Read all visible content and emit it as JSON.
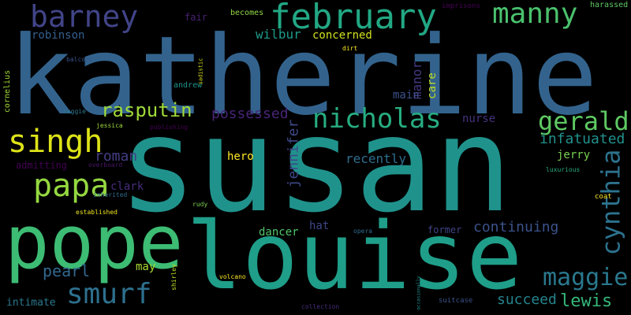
{
  "words": [
    {
      "text": "katherine",
      "color": "#33638d"
    },
    {
      "text": "susan",
      "color": "#20928c"
    },
    {
      "text": "louise",
      "color": "#1f9e89"
    },
    {
      "text": "pope",
      "color": "#3dbc74"
    },
    {
      "text": "february",
      "color": "#22a884"
    },
    {
      "text": "barney",
      "color": "#414487"
    },
    {
      "text": "manny",
      "color": "#4ac16d"
    },
    {
      "text": "singh",
      "color": "#dde318"
    },
    {
      "text": "papa",
      "color": "#95d840"
    },
    {
      "text": "smurf",
      "color": "#2d708e"
    },
    {
      "text": "nicholas",
      "color": "#27ad81"
    },
    {
      "text": "gerald",
      "color": "#5ec962"
    },
    {
      "text": "cynthia",
      "color": "#2c728e"
    },
    {
      "text": "maggie",
      "color": "#2a788e"
    },
    {
      "text": "rasputin",
      "color": "#a0da39"
    },
    {
      "text": "lewis",
      "color": "#35b779"
    },
    {
      "text": "possessed",
      "color": "#482576"
    },
    {
      "text": "continuing",
      "color": "#3b528b"
    },
    {
      "text": "pearl",
      "color": "#31688e"
    },
    {
      "text": "succeed",
      "color": "#25848e"
    },
    {
      "text": "infatuated",
      "color": "#21918c"
    },
    {
      "text": "jennifer",
      "color": "#3e4989"
    },
    {
      "text": "manor",
      "color": "#443983"
    },
    {
      "text": "roman",
      "color": "#433e85"
    },
    {
      "text": "recently",
      "color": "#2e6f8e"
    },
    {
      "text": "wilbur",
      "color": "#1e9b8a"
    },
    {
      "text": "robinson",
      "color": "#355f8d"
    },
    {
      "text": "concerned",
      "color": "#d0e11c"
    },
    {
      "text": "main",
      "color": "#3b518b"
    },
    {
      "text": "nurse",
      "color": "#46327e"
    },
    {
      "text": "hero",
      "color": "#fde725"
    },
    {
      "text": "jerry",
      "color": "#7ad151"
    },
    {
      "text": "care",
      "color": "#c2df23"
    },
    {
      "text": "clark",
      "color": "#472d7b"
    },
    {
      "text": "admitting",
      "color": "#440154"
    },
    {
      "text": "dancer",
      "color": "#52c569"
    },
    {
      "text": "former",
      "color": "#414487"
    },
    {
      "text": "hat",
      "color": "#3f4788"
    },
    {
      "text": "may",
      "color": "#aadc32"
    },
    {
      "text": "intimate",
      "color": "#2a788e"
    },
    {
      "text": "fair",
      "color": "#482173"
    },
    {
      "text": "becomes",
      "color": "#90d743"
    },
    {
      "text": "imprisons",
      "color": "#440154"
    },
    {
      "text": "harassed",
      "color": "#5ec962"
    },
    {
      "text": "cornelius",
      "color": "#a2da37"
    },
    {
      "text": "balcony",
      "color": "#39558c"
    },
    {
      "text": "dirt",
      "color": "#fde725"
    },
    {
      "text": "sadistic",
      "color": "#d8e219"
    },
    {
      "text": "andrew",
      "color": "#1f968b"
    },
    {
      "text": "reggie",
      "color": "#2a788e"
    },
    {
      "text": "jessica",
      "color": "#9dd93b"
    },
    {
      "text": "publishing",
      "color": "#440154"
    },
    {
      "text": "overboard",
      "color": "#481668"
    },
    {
      "text": "inherited",
      "color": "#2f6c8e"
    },
    {
      "text": "luxurious",
      "color": "#29af7f"
    },
    {
      "text": "coat",
      "color": "#fde725"
    },
    {
      "text": "rudy",
      "color": "#7ad151"
    },
    {
      "text": "established",
      "color": "#f1e51d"
    },
    {
      "text": "opera",
      "color": "#2f6b8e"
    },
    {
      "text": "volcano",
      "color": "#fde725"
    },
    {
      "text": "shirley",
      "color": "#c0df25"
    },
    {
      "text": "collection",
      "color": "#472c7a"
    },
    {
      "text": "suitcase",
      "color": "#3b528b"
    },
    {
      "text": "occasionally",
      "color": "#228c8d"
    }
  ]
}
